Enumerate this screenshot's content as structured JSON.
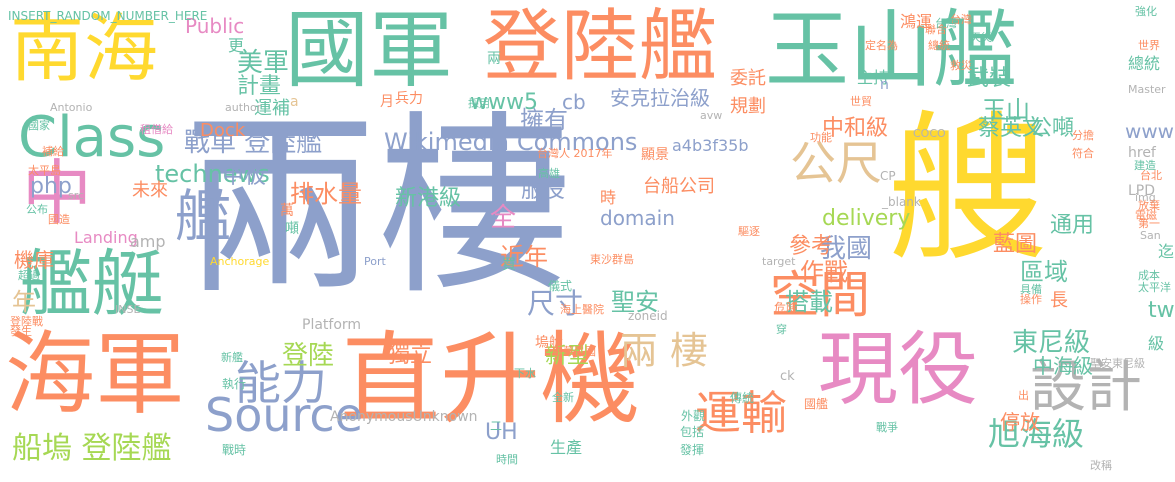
{
  "palette": {
    "green": "#66c2a5",
    "orange": "#fc8d62",
    "blue": "#8da0cb",
    "pink": "#e78ac3",
    "lime": "#a6d854",
    "yellow": "#ffd92f",
    "tan": "#e5c494",
    "gray": "#b3b3b3"
  },
  "words": [
    {
      "text": "艘",
      "color": "yellow"
    },
    {
      "text": "兩棲",
      "color": "blue"
    },
    {
      "text": "國軍",
      "color": "green"
    },
    {
      "text": "登陸艦",
      "color": "orange"
    },
    {
      "text": "玉山艦",
      "color": "green"
    },
    {
      "text": "南海",
      "color": "yellow"
    },
    {
      "text": "Class",
      "color": "green"
    },
    {
      "text": "中",
      "color": "pink"
    },
    {
      "text": "艦艇",
      "color": "green"
    },
    {
      "text": "海軍",
      "color": "orange"
    },
    {
      "text": "直升機",
      "color": "orange"
    },
    {
      "text": "現役",
      "color": "pink"
    },
    {
      "text": "Source",
      "color": "blue"
    },
    {
      "text": "能力",
      "color": "blue"
    },
    {
      "text": "運輸",
      "color": "orange"
    },
    {
      "text": "設計",
      "color": "gray"
    },
    {
      "text": "空間",
      "color": "orange"
    },
    {
      "text": "公尺",
      "color": "tan"
    },
    {
      "text": "兩 棲",
      "color": "tan"
    },
    {
      "text": "艦",
      "color": "blue"
    },
    {
      "text": "戰車 登陸艦",
      "color": "blue"
    },
    {
      "text": "Wikimedia Commons",
      "color": "blue"
    },
    {
      "text": "擁有",
      "color": "blue"
    },
    {
      "text": "旭海級",
      "color": "green"
    },
    {
      "text": "船塢 登陸艦",
      "color": "lime"
    },
    {
      "text": "美軍",
      "color": "green"
    },
    {
      "text": "計畫",
      "color": "green"
    },
    {
      "text": "運補",
      "color": "green"
    },
    {
      "text": "Public",
      "color": "pink"
    },
    {
      "text": "technews",
      "color": "green"
    },
    {
      "text": "甲板",
      "color": "blue"
    },
    {
      "text": "php",
      "color": "blue"
    },
    {
      "text": "www5",
      "color": "green"
    },
    {
      "text": "cb",
      "color": "blue"
    },
    {
      "text": "安克拉治級",
      "color": "blue"
    },
    {
      "text": "中和級",
      "color": "orange"
    },
    {
      "text": "蔡英文",
      "color": "green"
    },
    {
      "text": "公噸",
      "color": "green"
    },
    {
      "text": "玉山",
      "color": "green"
    },
    {
      "text": "武裝",
      "color": "green"
    },
    {
      "text": "排水量",
      "color": "orange"
    },
    {
      "text": "新港級",
      "color": "green"
    },
    {
      "text": "服役",
      "color": "blue"
    },
    {
      "text": "台船公司",
      "color": "orange"
    },
    {
      "text": "domain",
      "color": "blue"
    },
    {
      "text": "delivery",
      "color": "lime"
    },
    {
      "text": "我國",
      "color": "blue"
    },
    {
      "text": "參考",
      "color": "orange"
    },
    {
      "text": "作戰",
      "color": "orange"
    },
    {
      "text": "搭載",
      "color": "green"
    },
    {
      "text": "聖安",
      "color": "green"
    },
    {
      "text": "尺寸",
      "color": "blue"
    },
    {
      "text": "新型",
      "color": "lime"
    },
    {
      "text": "獨立",
      "color": "orange"
    },
    {
      "text": "登陸",
      "color": "lime"
    },
    {
      "text": "近年",
      "color": "orange"
    },
    {
      "text": "全",
      "color": "pink"
    },
    {
      "text": "藍圖",
      "color": "orange"
    },
    {
      "text": "東尼級",
      "color": "green"
    },
    {
      "text": "區域",
      "color": "green"
    },
    {
      "text": "通用",
      "color": "green"
    },
    {
      "text": "停放",
      "color": "orange"
    },
    {
      "text": "中海級",
      "color": "green"
    },
    {
      "text": "tw",
      "color": "green"
    },
    {
      "text": "UH",
      "color": "blue"
    },
    {
      "text": "年",
      "color": "tan"
    },
    {
      "text": "機庫",
      "color": "orange"
    },
    {
      "text": "www",
      "color": "blue"
    },
    {
      "text": "Dock",
      "color": "orange"
    },
    {
      "text": "Landing",
      "color": "pink"
    },
    {
      "text": "amp",
      "color": "gray"
    },
    {
      "text": "未來",
      "color": "orange"
    },
    {
      "text": "a4b3f35b",
      "color": "blue"
    },
    {
      "text": "AnonymousUnknown",
      "color": "gray"
    },
    {
      "text": "Platform",
      "color": "gray"
    },
    {
      "text": "INSERT_RANDOM_NUMBER_HERE",
      "color": "green"
    },
    {
      "text": "規劃",
      "color": "orange"
    },
    {
      "text": "委託",
      "color": "orange"
    },
    {
      "text": "主持",
      "color": "green"
    },
    {
      "text": "鴻運",
      "color": "orange"
    },
    {
      "text": "總統",
      "color": "green"
    },
    {
      "text": "更",
      "color": "green"
    },
    {
      "text": "a",
      "color": "tan"
    },
    {
      "text": "n",
      "color": "blue"
    },
    {
      "text": "兵力",
      "color": "orange"
    },
    {
      "text": "href",
      "color": "gray"
    },
    {
      "text": "LPD",
      "color": "gray"
    },
    {
      "text": "長",
      "color": "orange"
    },
    {
      "text": "迄",
      "color": "green"
    },
    {
      "text": "級",
      "color": "green"
    },
    {
      "text": "生產",
      "color": "green"
    },
    {
      "text": "Antonio",
      "color": "gray"
    },
    {
      "text": "author",
      "color": "gray"
    },
    {
      "text": "INSE",
      "color": "gray"
    },
    {
      "text": "Anchorage",
      "color": "yellow"
    },
    {
      "text": "ck",
      "color": "gray"
    },
    {
      "text": "CP",
      "color": "gray"
    },
    {
      "text": "_blank",
      "color": "gray"
    },
    {
      "text": "target",
      "color": "gray"
    },
    {
      "text": "zoneid",
      "color": "gray"
    },
    {
      "text": "Port",
      "color": "blue"
    },
    {
      "text": "Master",
      "color": "gray"
    },
    {
      "text": "avw",
      "color": "gray"
    },
    {
      "text": "COCO",
      "color": "gray"
    },
    {
      "text": "img",
      "color": "gray"
    },
    {
      "text": "src",
      "color": "gray"
    },
    {
      "text": "San",
      "color": "gray"
    },
    {
      "text": "台灣",
      "color": "orange"
    },
    {
      "text": "世界",
      "color": "orange"
    },
    {
      "text": "強化",
      "color": "green"
    },
    {
      "text": "建造",
      "color": "green"
    },
    {
      "text": "台北",
      "color": "orange"
    },
    {
      "text": "放棄",
      "color": "orange"
    },
    {
      "text": "電磁",
      "color": "orange"
    },
    {
      "text": "第一",
      "color": "orange"
    },
    {
      "text": "成本",
      "color": "green"
    },
    {
      "text": "具備",
      "color": "green"
    },
    {
      "text": "操作",
      "color": "orange"
    },
    {
      "text": "太平洋",
      "color": "green"
    },
    {
      "text": "聖安東尼級",
      "color": "gray"
    },
    {
      "text": "改稱",
      "color": "gray"
    },
    {
      "text": "國家",
      "color": "green"
    },
    {
      "text": "太平島",
      "color": "orange"
    },
    {
      "text": "國造",
      "color": "orange"
    },
    {
      "text": "公布",
      "color": "green"
    },
    {
      "text": "超過",
      "color": "green"
    },
    {
      "text": "登陸戰",
      "color": "orange"
    },
    {
      "text": "發生",
      "color": "orange"
    },
    {
      "text": "租借給",
      "color": "pink"
    },
    {
      "text": "補給",
      "color": "orange"
    },
    {
      "text": "台灣人 2017年",
      "color": "orange"
    },
    {
      "text": "新艦",
      "color": "green"
    },
    {
      "text": "東沙群島",
      "color": "orange"
    },
    {
      "text": "海上醫院",
      "color": "orange"
    },
    {
      "text": "中華民國",
      "color": "orange"
    },
    {
      "text": "高雄",
      "color": "green"
    },
    {
      "text": "下水",
      "color": "green"
    },
    {
      "text": "全新",
      "color": "green"
    },
    {
      "text": "採用",
      "color": "green"
    },
    {
      "text": "時間",
      "color": "green"
    },
    {
      "text": "二",
      "color": "green"
    },
    {
      "text": "定名為",
      "color": "orange"
    },
    {
      "text": "救災",
      "color": "orange"
    },
    {
      "text": "出",
      "color": "orange"
    },
    {
      "text": "穿",
      "color": "green"
    },
    {
      "text": "傳統",
      "color": "green"
    },
    {
      "text": "時",
      "color": "orange"
    },
    {
      "text": "萬",
      "color": "orange"
    },
    {
      "text": "噸",
      "color": "green"
    },
    {
      "text": "買",
      "color": "green"
    },
    {
      "text": "塢艙",
      "color": "orange"
    },
    {
      "text": "兩",
      "color": "green"
    },
    {
      "text": "月",
      "color": "orange"
    },
    {
      "text": "顯景",
      "color": "orange"
    },
    {
      "text": "儀式",
      "color": "green"
    },
    {
      "text": "戰時",
      "color": "green"
    },
    {
      "text": "執行",
      "color": "green"
    },
    {
      "text": "國艦",
      "color": "orange"
    },
    {
      "text": "危險",
      "color": "orange"
    },
    {
      "text": "包括",
      "color": "green"
    },
    {
      "text": "發揮",
      "color": "green"
    },
    {
      "text": "外觀",
      "color": "green"
    },
    {
      "text": "功能",
      "color": "orange"
    },
    {
      "text": "分擔",
      "color": "orange"
    },
    {
      "text": "符合",
      "color": "orange"
    },
    {
      "text": "世貿",
      "color": "orange"
    },
    {
      "text": "天災",
      "color": "green"
    },
    {
      "text": "戰爭",
      "color": "green"
    },
    {
      "text": "驅逐",
      "color": "orange"
    },
    {
      "text": "聯合",
      "color": "orange"
    },
    {
      "text": "台灣",
      "color": "green"
    },
    {
      "text": "總統",
      "color": "orange"
    }
  ]
}
